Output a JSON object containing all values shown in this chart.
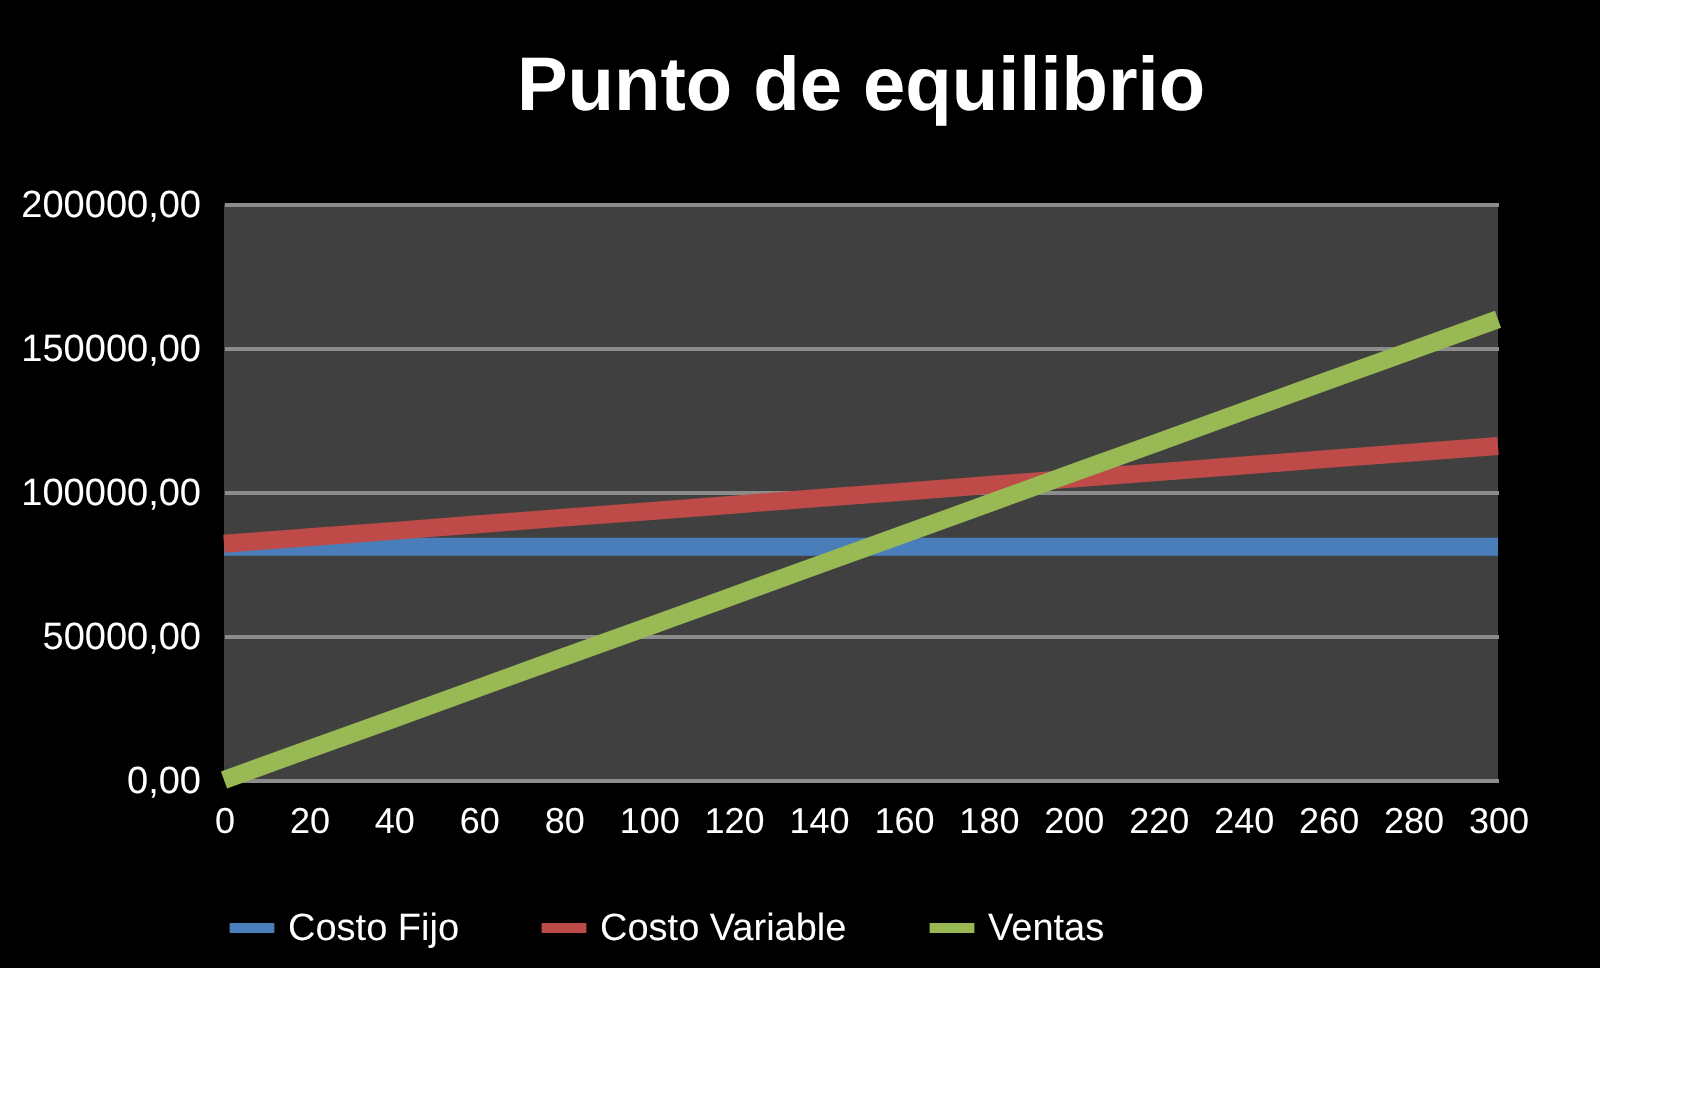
{
  "chart_data": {
    "type": "line",
    "title": "Punto de equilibrio",
    "categories": [
      "0",
      "20",
      "40",
      "60",
      "80",
      "100",
      "120",
      "140",
      "160",
      "180",
      "200",
      "220",
      "240",
      "260",
      "280",
      "300"
    ],
    "series": [
      {
        "name": "Costo Fijo",
        "color": "#4a7ebb",
        "values": [
          81000,
          81000,
          81000,
          81000,
          81000,
          81000,
          81000,
          81000,
          81000,
          81000,
          81000,
          81000,
          81000,
          81000,
          81000,
          81000
        ]
      },
      {
        "name": "Costo Variable",
        "color": "#be4b48",
        "values": [
          82000,
          84300,
          86500,
          88800,
          91100,
          93300,
          95600,
          97900,
          100100,
          102400,
          104700,
          106900,
          109200,
          111500,
          113700,
          116000
        ]
      },
      {
        "name": "Ventas",
        "color": "#98b954",
        "values": [
          0,
          10700,
          21300,
          32000,
          42700,
          53300,
          64000,
          74700,
          85300,
          96000,
          106700,
          117300,
          128000,
          138700,
          149300,
          160000
        ]
      }
    ],
    "ylim": [
      0,
      200000
    ],
    "yticks": [
      {
        "value": 0,
        "label": "0,00"
      },
      {
        "value": 50000,
        "label": "50000,00"
      },
      {
        "value": 100000,
        "label": "100000,00"
      },
      {
        "value": 150000,
        "label": "150000,00"
      },
      {
        "value": 200000,
        "label": "200000,00"
      }
    ],
    "grid": "y",
    "legend": "bottom",
    "marker": "none",
    "line_style": "solid"
  }
}
